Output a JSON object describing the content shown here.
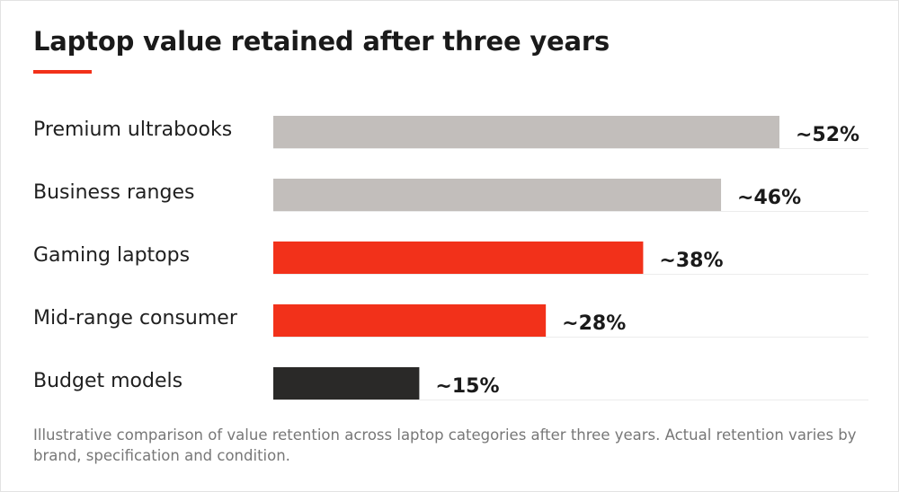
{
  "title": "Laptop value retained after three years",
  "footnote": "Illustrative comparison of value retention across laptop categories after three years. Actual retention varies by brand, specification and condition.",
  "colors": {
    "accent": "#f2311a",
    "grey": "#c2bebb",
    "dark": "#2a2928"
  },
  "chart_data": {
    "type": "bar",
    "orientation": "horizontal",
    "title": "Laptop value retained after three years",
    "categories": [
      "Premium ultrabooks",
      "Business ranges",
      "Gaming laptops",
      "Mid-range consumer",
      "Budget models"
    ],
    "values": [
      52,
      46,
      38,
      28,
      15
    ],
    "value_labels": [
      "~52%",
      "~46%",
      "~38%",
      "~28%",
      "~15%"
    ],
    "bar_colors": [
      "#c2bebb",
      "#c2bebb",
      "#f2311a",
      "#f2311a",
      "#2a2928"
    ],
    "xlim": [
      0,
      52
    ],
    "grid": false,
    "legend": "none"
  }
}
